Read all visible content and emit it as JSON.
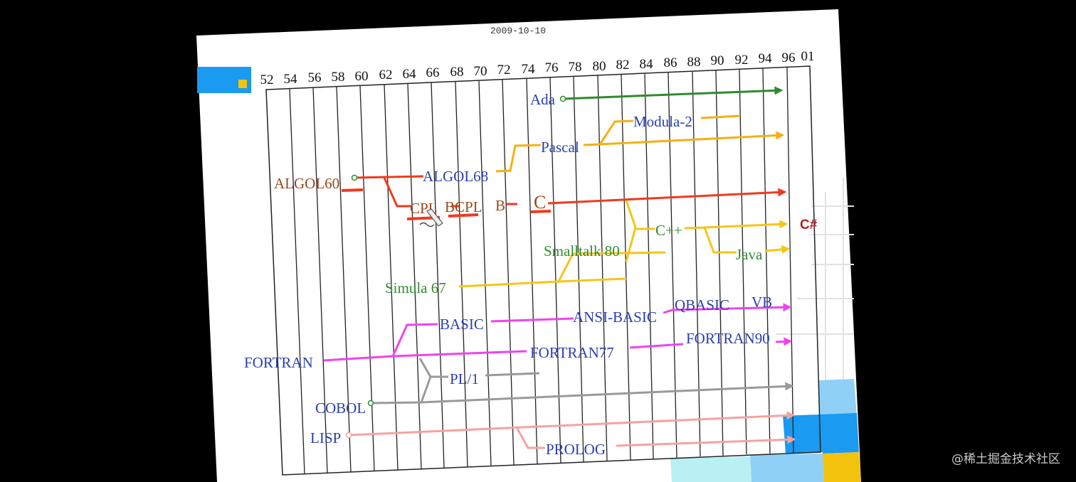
{
  "header": {
    "date": "2009-10-10"
  },
  "timeline": {
    "years": [
      "52",
      "54",
      "56",
      "58",
      "60",
      "62",
      "64",
      "66",
      "68",
      "70",
      "72",
      "74",
      "76",
      "78",
      "80",
      "82",
      "84",
      "86",
      "88",
      "90",
      "92",
      "94",
      "96"
    ],
    "extra_year": "01"
  },
  "languages": {
    "ada": "Ada",
    "modula2": "Modula-2",
    "pascal": "Pascal",
    "algol60": "ALGOL60",
    "algol68": "ALGOL68",
    "cpl": "CPL",
    "bcpl": "BCPL",
    "b": "B",
    "c": "C",
    "cpp": "C++",
    "csharp": "C#",
    "java": "Java",
    "smalltalk80": "Smalltalk 80",
    "simula67": "Simula 67",
    "basic": "BASIC",
    "ansi_basic": "ANSI-BASIC",
    "qbasic": "QBASIC",
    "vb": "VB",
    "fortran": "FORTRAN",
    "fortran77": "FORTRAN77",
    "fortran90": "FORTRAN90",
    "pl1": "PL/1",
    "cobol": "COBOL",
    "lisp": "LISP",
    "prolog": "PROLOG"
  },
  "colors": {
    "ada": "#2e8b2e",
    "pascal_family": "#f5b014",
    "algol_family": "#f03a1e",
    "c_family": "#f5c518",
    "basic_family": "#ee44ee",
    "pl1_cobol": "#9a9a9a",
    "lisp_prolog": "#f4a3a0",
    "label_blue": "#2a3fb0",
    "label_brown": "#9a4a1c",
    "label_green": "#2e8b2e",
    "label_csharp": "#b3202a"
  },
  "watermark": "@稀土掘金技术社区"
}
